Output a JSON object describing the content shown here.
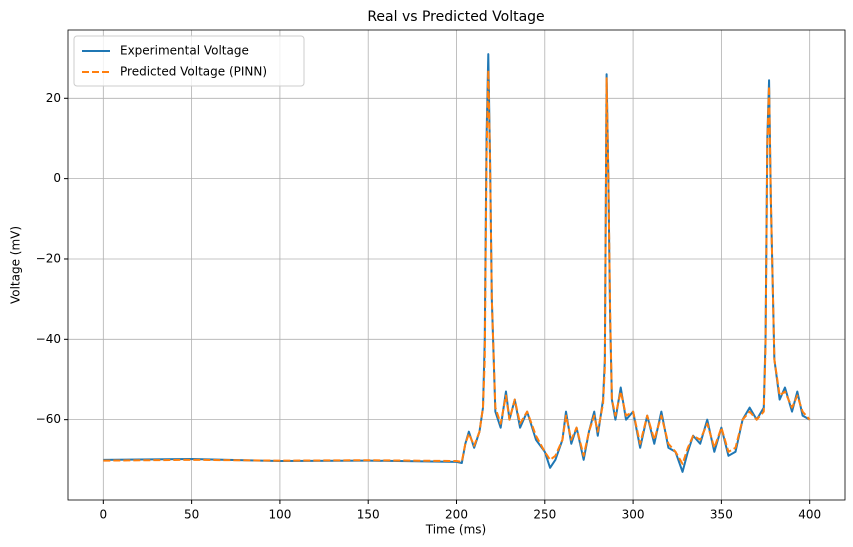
{
  "chart_data": {
    "type": "line",
    "title": "Real vs Predicted Voltage",
    "x_label": "Time (ms)",
    "y_label": "Voltage (mV)",
    "x": [
      0,
      50,
      100,
      150,
      200,
      203,
      205,
      207,
      210,
      213,
      215,
      216,
      217,
      218,
      219,
      220,
      222,
      225,
      228,
      230,
      233,
      236,
      240,
      245,
      250,
      253,
      256,
      260,
      262,
      265,
      268,
      272,
      275,
      278,
      280,
      283,
      284,
      285,
      286,
      287,
      288,
      290,
      293,
      296,
      300,
      304,
      308,
      312,
      316,
      320,
      324,
      328,
      331,
      334,
      338,
      342,
      346,
      350,
      354,
      358,
      362,
      366,
      370,
      374,
      375,
      376,
      377,
      378,
      380,
      383,
      386,
      390,
      393,
      396,
      400
    ],
    "series": [
      {
        "name": "Experimental Voltage",
        "color": "#1f77b4",
        "linestyle": "solid",
        "values": [
          -70,
          -69.8,
          -70.3,
          -70.2,
          -70.5,
          -70.8,
          -66,
          -63,
          -67,
          -63,
          -57,
          -40,
          10,
          31,
          5,
          -30,
          -58,
          -62,
          -53,
          -60,
          -55,
          -62,
          -58,
          -65,
          -68,
          -72,
          -70,
          -65,
          -58,
          -66,
          -62,
          -70,
          -63,
          -58,
          -64,
          -55,
          -45,
          26,
          0,
          -35,
          -55,
          -60,
          -52,
          -60,
          -58,
          -67,
          -59,
          -66,
          -58,
          -67,
          -68,
          -73,
          -68,
          -64,
          -66,
          -60,
          -68,
          -62,
          -69,
          -68,
          -60,
          -57,
          -60,
          -57,
          -40,
          10,
          24.5,
          -5,
          -45,
          -55,
          -52,
          -58,
          -53,
          -59,
          -60
        ]
      },
      {
        "name": "Predicted Voltage (PINN)",
        "color": "#ff7f0e",
        "linestyle": "dashed",
        "values": [
          -70.2,
          -70,
          -70.2,
          -70.1,
          -70.3,
          -70.5,
          -66,
          -63.5,
          -66.5,
          -63,
          -57,
          -45,
          5,
          27,
          4,
          -30,
          -57,
          -61,
          -54,
          -60,
          -55,
          -61,
          -58,
          -64,
          -68,
          -70,
          -69,
          -65,
          -59,
          -65,
          -62,
          -69,
          -63,
          -59,
          -63,
          -56,
          -47,
          25,
          0,
          -33,
          -55,
          -59,
          -53,
          -59,
          -58,
          -66,
          -59,
          -65,
          -59,
          -66,
          -68,
          -71,
          -67,
          -64,
          -65,
          -61,
          -67,
          -62,
          -68,
          -67,
          -60,
          -58,
          -60,
          -58,
          -42,
          8,
          23,
          -5,
          -45,
          -54,
          -53,
          -57,
          -54,
          -58,
          -60
        ]
      }
    ],
    "xlim": [
      -20,
      420
    ],
    "ylim": [
      -80,
      37
    ],
    "xticks": [
      0,
      50,
      100,
      150,
      200,
      250,
      300,
      350,
      400
    ],
    "yticks": [
      {
        "value": -60,
        "label": "−60"
      },
      {
        "value": -40,
        "label": "−40"
      },
      {
        "value": -20,
        "label": "−20"
      },
      0,
      20
    ],
    "grid": true,
    "legend": "upper left"
  }
}
